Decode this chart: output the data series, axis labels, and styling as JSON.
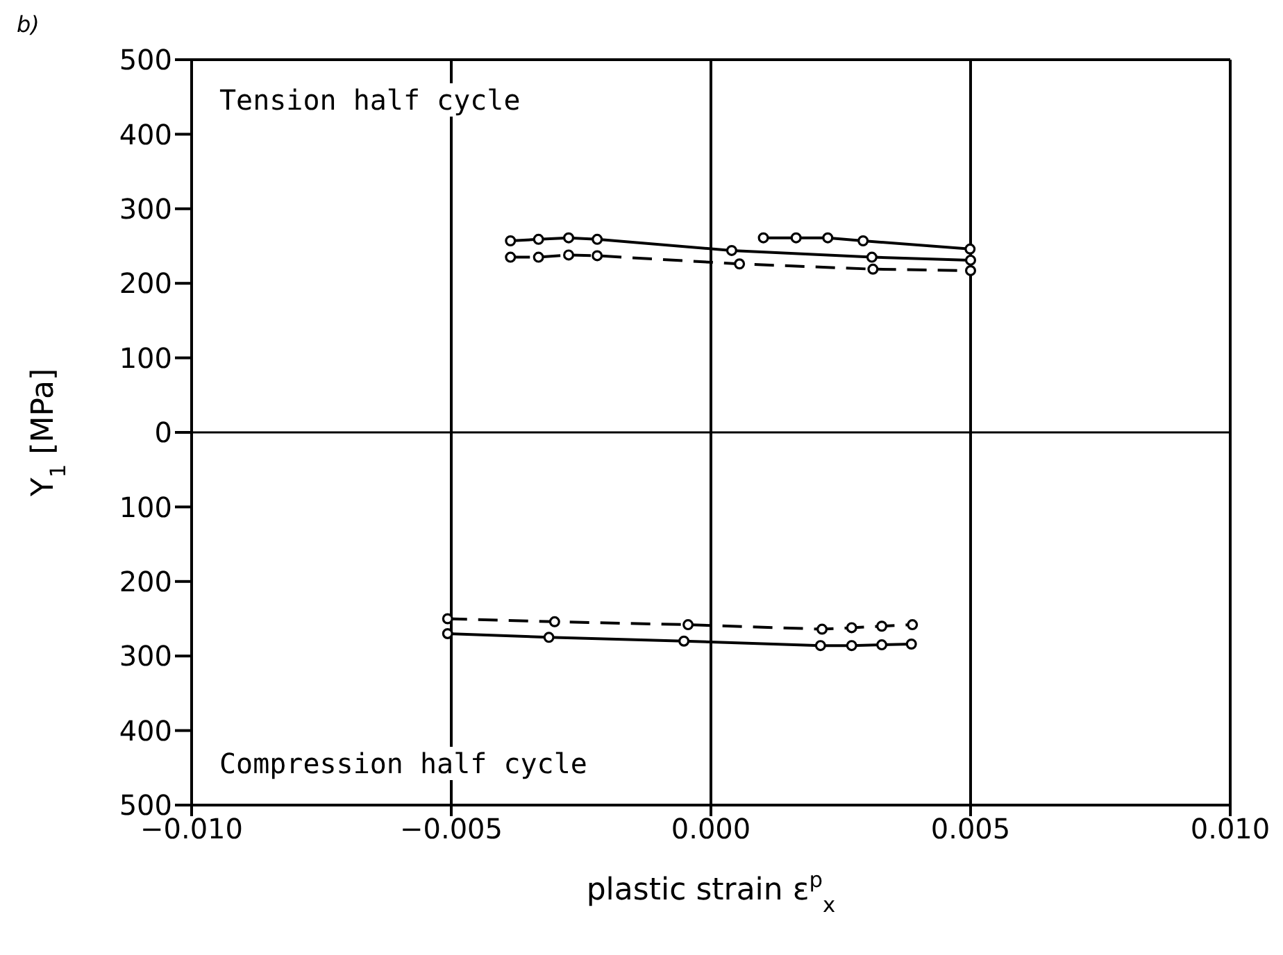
{
  "chart_data": {
    "type": "line",
    "xlabel": "plastic strain ε$^{p}$$_{x}$",
    "ylabel": "Y$_{1}$ [MPa]",
    "annotations": [
      "b)",
      "Tension half cycle",
      "Compression half cycle"
    ],
    "xlim": [
      -0.01,
      0.01
    ],
    "xticks": [
      {
        "value": -0.01,
        "label": "−0.010"
      },
      {
        "value": -0.005,
        "label": "−0.005"
      },
      {
        "value": 0,
        "label": "0.000"
      },
      {
        "value": 0.005,
        "label": "0.005"
      },
      {
        "value": 0.01,
        "label": "0.010"
      }
    ],
    "ylim": [
      -500,
      500
    ],
    "yticks": [
      {
        "value": -500,
        "label": "500"
      },
      {
        "value": -400,
        "label": "400"
      },
      {
        "value": -300,
        "label": "300"
      },
      {
        "value": -200,
        "label": "200"
      },
      {
        "value": -100,
        "label": "100"
      },
      0,
      100,
      200,
      300,
      400,
      500
    ],
    "grid": false,
    "marker": "circle",
    "ref_lines": [
      {
        "axis": "x",
        "value": -0.005
      },
      {
        "axis": "x",
        "value": 0
      },
      {
        "axis": "x",
        "value": 0.005
      },
      {
        "axis": "y",
        "value": 0
      }
    ],
    "series": [
      {
        "color": "#000000",
        "line_style": "solid",
        "x": [
          -0.00386,
          -0.00332,
          -0.00274,
          -0.00219,
          0.0004,
          0.0031,
          0.005
        ],
        "values": [
          257,
          259,
          261,
          259,
          244,
          235,
          231
        ]
      },
      {
        "color": "#000000",
        "line_style": "solid",
        "x": [
          0.00101,
          0.00164,
          0.00225,
          0.00293,
          0.00499
        ],
        "values": [
          261,
          261,
          261,
          257,
          246
        ]
      },
      {
        "color": "#000000",
        "line_style": "dashed",
        "x": [
          -0.00386,
          -0.00332,
          -0.00274,
          -0.00219,
          0.00055,
          0.00312,
          0.005
        ],
        "values": [
          235,
          235,
          238,
          237,
          226,
          219,
          217
        ]
      },
      {
        "color": "#000000",
        "line_style": "solid",
        "x": [
          -0.00507,
          -0.00312,
          -0.00052,
          0.00211,
          0.00271,
          0.00329,
          0.00386
        ],
        "values": [
          -270,
          -275,
          -280,
          -286,
          -286,
          -285,
          -284
        ]
      },
      {
        "color": "#000000",
        "line_style": "dashed",
        "x": [
          -0.00507,
          -0.00301,
          -0.00044,
          0.00214,
          0.00271,
          0.00329,
          0.00388
        ],
        "values": [
          -250,
          -254,
          -258,
          -264,
          -262,
          -260,
          -258
        ]
      }
    ]
  }
}
